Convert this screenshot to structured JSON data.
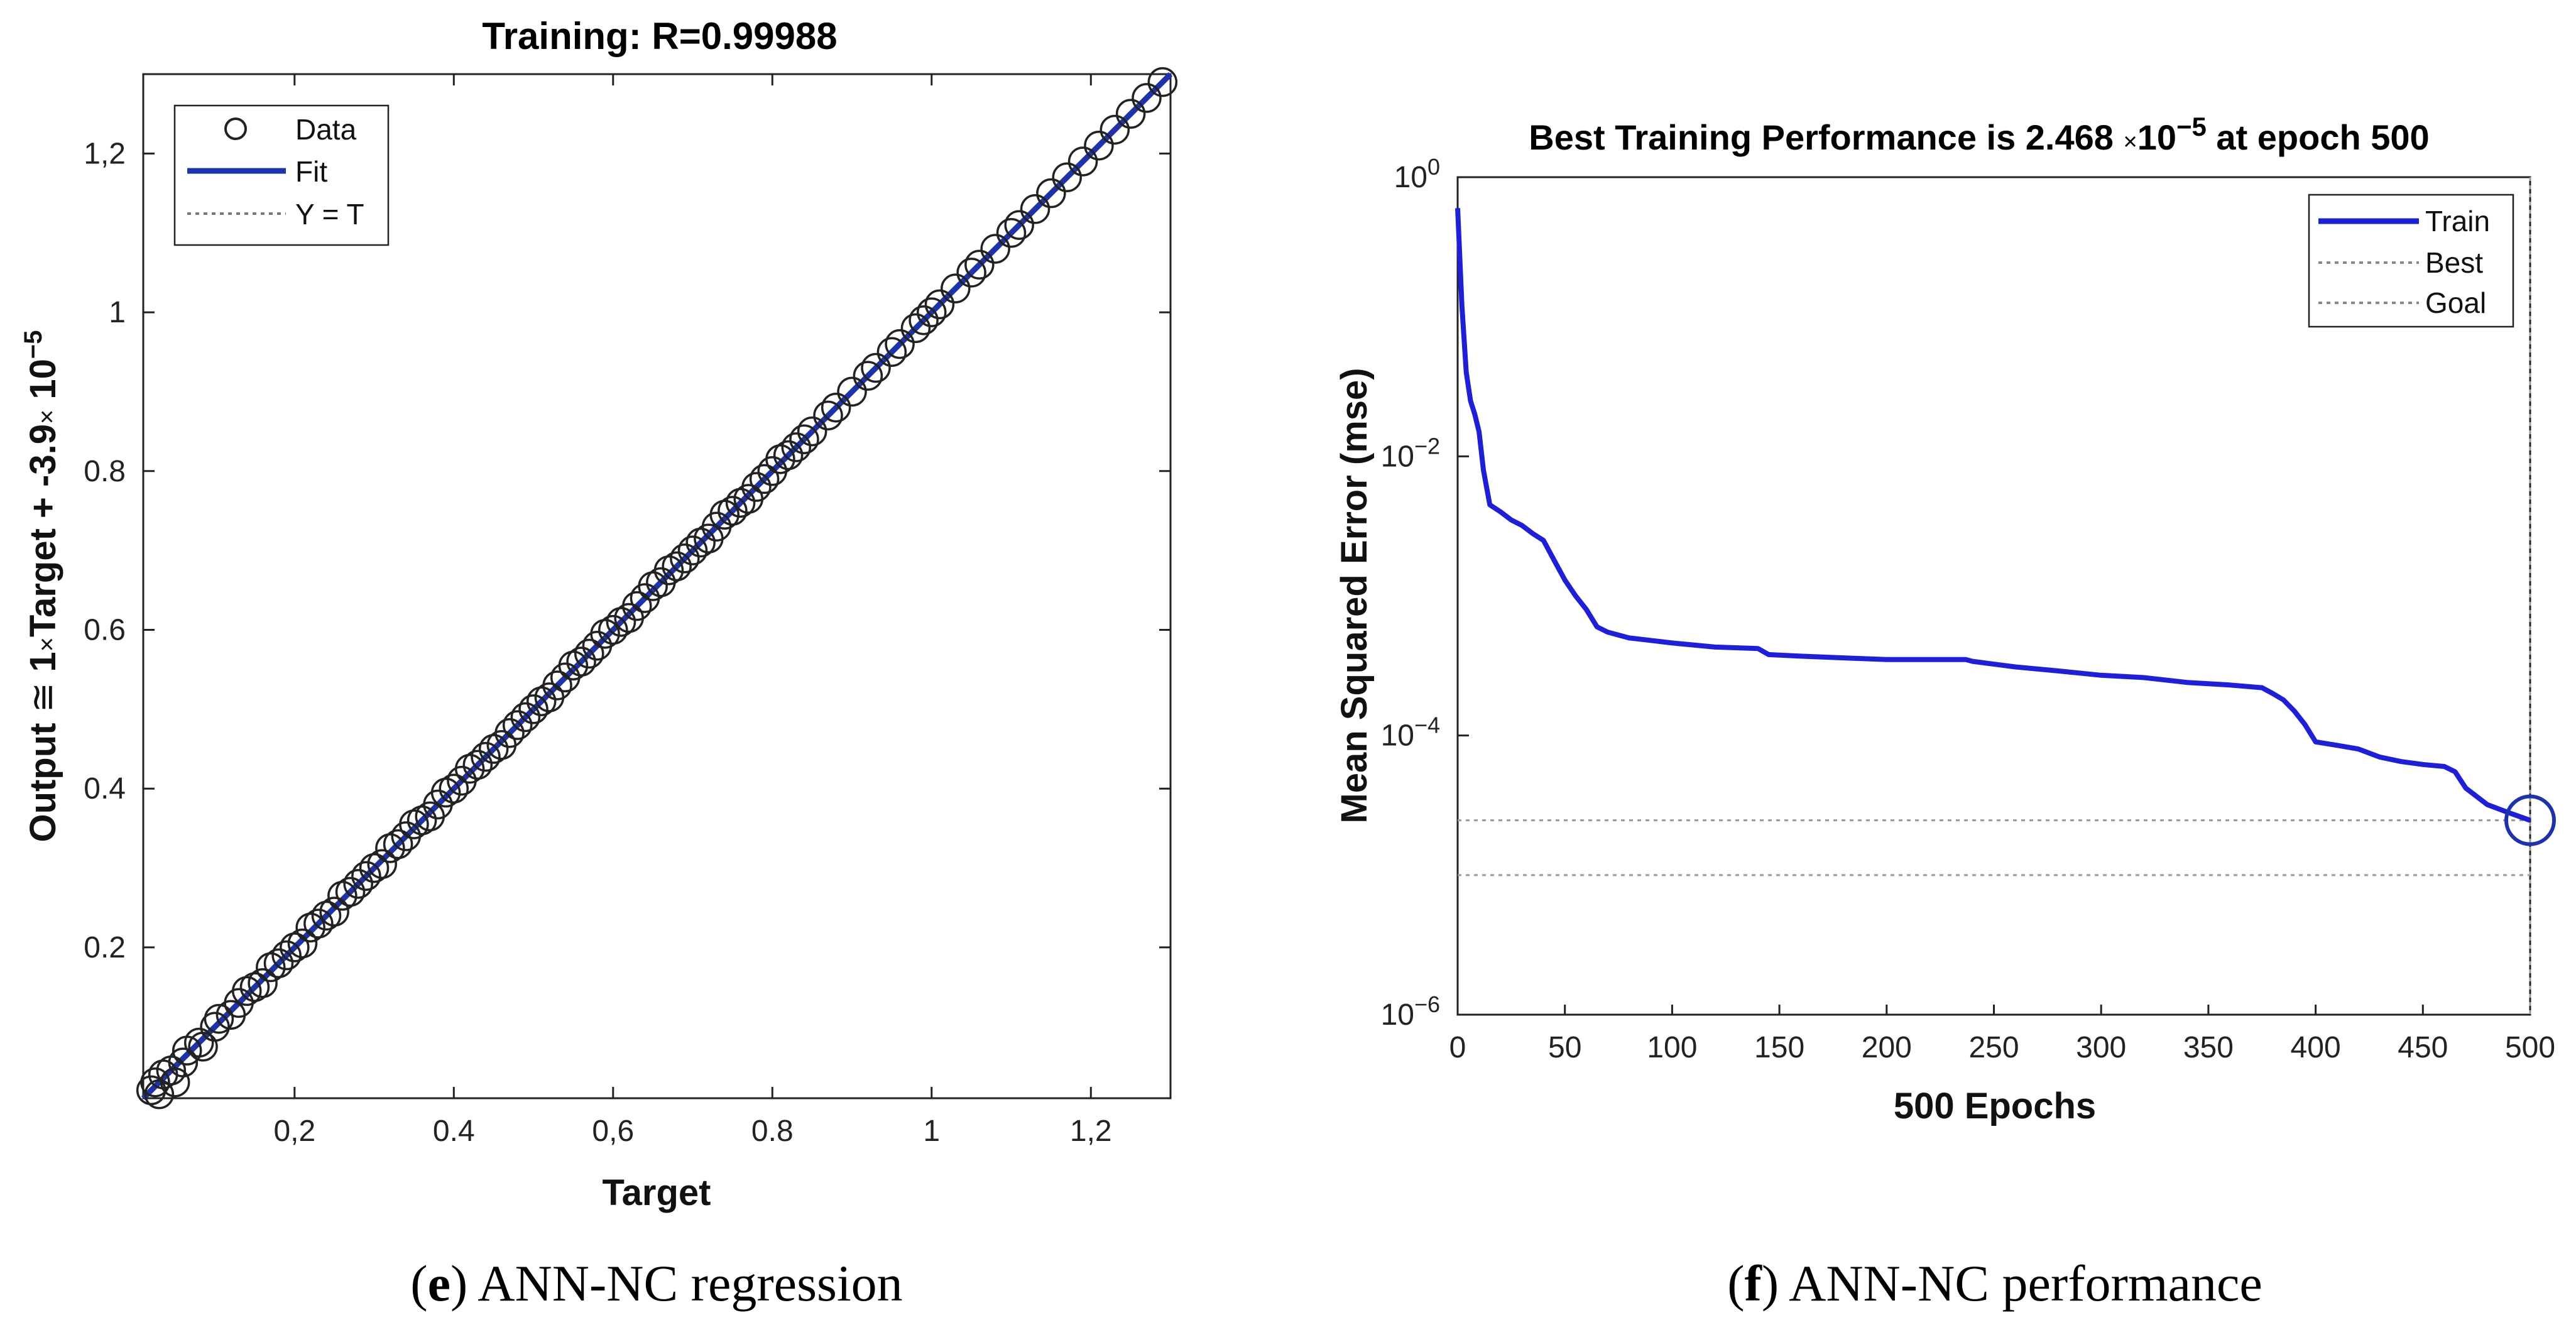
{
  "chart_data": [
    {
      "id": "e",
      "type": "scatter",
      "title": "Training: R=0.99988",
      "xlabel": "Target",
      "ylabel_parts": [
        "Output ",
        "≅",
        " 1",
        "×",
        "Target + -3.9",
        "×",
        " 10",
        "−5"
      ],
      "xlim": [
        0.01,
        1.3
      ],
      "ylim": [
        0.01,
        1.3
      ],
      "x_ticks": [
        0.2,
        0.4,
        0.6,
        0.8,
        1,
        1.2
      ],
      "x_tick_labels": [
        "0,2",
        "0.4",
        "0,6",
        "0.8",
        "1",
        "1,2"
      ],
      "y_ticks": [
        0.2,
        0.4,
        0.6,
        0.8,
        1,
        1.2
      ],
      "y_tick_labels": [
        "0.2",
        "0.4",
        "0.6",
        "0.8",
        "1",
        "1,2"
      ],
      "legend": [
        {
          "label": "Data",
          "style": "circle"
        },
        {
          "label": "Fit",
          "style": "line"
        },
        {
          "label": "Y = T",
          "style": "dotted"
        }
      ],
      "fit": {
        "slope": 1,
        "intercept": -3.9e-05
      },
      "points": [
        [
          0.02,
          0.02
        ],
        [
          0.025,
          0.03
        ],
        [
          0.03,
          0.015
        ],
        [
          0.035,
          0.04
        ],
        [
          0.045,
          0.045
        ],
        [
          0.05,
          0.03
        ],
        [
          0.06,
          0.055
        ],
        [
          0.065,
          0.07
        ],
        [
          0.08,
          0.08
        ],
        [
          0.085,
          0.075
        ],
        [
          0.1,
          0.1
        ],
        [
          0.105,
          0.11
        ],
        [
          0.12,
          0.115
        ],
        [
          0.13,
          0.13
        ],
        [
          0.14,
          0.145
        ],
        [
          0.15,
          0.15
        ],
        [
          0.16,
          0.155
        ],
        [
          0.17,
          0.175
        ],
        [
          0.18,
          0.18
        ],
        [
          0.19,
          0.19
        ],
        [
          0.2,
          0.2
        ],
        [
          0.21,
          0.205
        ],
        [
          0.22,
          0.225
        ],
        [
          0.23,
          0.23
        ],
        [
          0.24,
          0.24
        ],
        [
          0.25,
          0.245
        ],
        [
          0.26,
          0.265
        ],
        [
          0.27,
          0.27
        ],
        [
          0.28,
          0.28
        ],
        [
          0.29,
          0.29
        ],
        [
          0.3,
          0.3
        ],
        [
          0.31,
          0.305
        ],
        [
          0.32,
          0.325
        ],
        [
          0.33,
          0.33
        ],
        [
          0.34,
          0.34
        ],
        [
          0.35,
          0.355
        ],
        [
          0.36,
          0.36
        ],
        [
          0.37,
          0.365
        ],
        [
          0.38,
          0.38
        ],
        [
          0.39,
          0.395
        ],
        [
          0.4,
          0.4
        ],
        [
          0.41,
          0.41
        ],
        [
          0.42,
          0.425
        ],
        [
          0.43,
          0.43
        ],
        [
          0.44,
          0.44
        ],
        [
          0.45,
          0.45
        ],
        [
          0.46,
          0.455
        ],
        [
          0.47,
          0.47
        ],
        [
          0.48,
          0.48
        ],
        [
          0.49,
          0.49
        ],
        [
          0.5,
          0.5
        ],
        [
          0.51,
          0.51
        ],
        [
          0.52,
          0.515
        ],
        [
          0.53,
          0.53
        ],
        [
          0.54,
          0.54
        ],
        [
          0.55,
          0.555
        ],
        [
          0.56,
          0.56
        ],
        [
          0.57,
          0.57
        ],
        [
          0.58,
          0.58
        ],
        [
          0.59,
          0.595
        ],
        [
          0.6,
          0.6
        ],
        [
          0.61,
          0.61
        ],
        [
          0.62,
          0.615
        ],
        [
          0.63,
          0.63
        ],
        [
          0.64,
          0.64
        ],
        [
          0.65,
          0.655
        ],
        [
          0.66,
          0.66
        ],
        [
          0.67,
          0.675
        ],
        [
          0.68,
          0.68
        ],
        [
          0.69,
          0.69
        ],
        [
          0.7,
          0.7
        ],
        [
          0.71,
          0.71
        ],
        [
          0.72,
          0.715
        ],
        [
          0.73,
          0.73
        ],
        [
          0.74,
          0.745
        ],
        [
          0.75,
          0.75
        ],
        [
          0.76,
          0.76
        ],
        [
          0.77,
          0.765
        ],
        [
          0.78,
          0.78
        ],
        [
          0.79,
          0.79
        ],
        [
          0.8,
          0.8
        ],
        [
          0.81,
          0.815
        ],
        [
          0.82,
          0.82
        ],
        [
          0.83,
          0.83
        ],
        [
          0.84,
          0.84
        ],
        [
          0.85,
          0.85
        ],
        [
          0.87,
          0.87
        ],
        [
          0.88,
          0.88
        ],
        [
          0.9,
          0.9
        ],
        [
          0.92,
          0.92
        ],
        [
          0.93,
          0.93
        ],
        [
          0.95,
          0.95
        ],
        [
          0.96,
          0.96
        ],
        [
          0.98,
          0.98
        ],
        [
          0.99,
          0.99
        ],
        [
          1.0,
          1.0
        ],
        [
          1.01,
          1.01
        ],
        [
          1.03,
          1.03
        ],
        [
          1.05,
          1.05
        ],
        [
          1.06,
          1.06
        ],
        [
          1.08,
          1.08
        ],
        [
          1.1,
          1.1
        ],
        [
          1.11,
          1.11
        ],
        [
          1.13,
          1.13
        ],
        [
          1.15,
          1.15
        ],
        [
          1.17,
          1.17
        ],
        [
          1.19,
          1.19
        ],
        [
          1.21,
          1.21
        ],
        [
          1.23,
          1.23
        ],
        [
          1.25,
          1.25
        ],
        [
          1.27,
          1.27
        ],
        [
          1.29,
          1.29
        ]
      ],
      "caption_letter": "e",
      "caption_text": " ANN-NC regression"
    },
    {
      "id": "f",
      "type": "line",
      "title_parts": [
        "Best Training Performance is 2.468 ",
        "×",
        "10",
        "−5",
        " at epoch 500"
      ],
      "xlabel": "500 Epochs",
      "ylabel": "Mean Squared Error  (mse)",
      "xlim": [
        0,
        500
      ],
      "ylim_log10": [
        -6,
        0
      ],
      "x_ticks": [
        0,
        50,
        100,
        150,
        200,
        250,
        300,
        350,
        400,
        450,
        500
      ],
      "x_tick_labels": [
        "0",
        "50",
        "100",
        "150",
        "200",
        "250",
        "300",
        "350",
        "400",
        "450",
        "500"
      ],
      "y_tick_exponents": [
        0,
        -2,
        -4,
        -6
      ],
      "y_tick_exponent_labels": [
        "0",
        "−2",
        "−4",
        "−6"
      ],
      "y_tick_base": "10",
      "legend": [
        {
          "label": "Train",
          "style": "line"
        },
        {
          "label": "Best",
          "style": "dotted"
        },
        {
          "label": "Goal",
          "style": "dotted"
        }
      ],
      "best_mse": 2.468e-05,
      "goal_mse": 1e-05,
      "best_epoch": 500,
      "series": [
        {
          "name": "Train",
          "x": [
            0,
            2,
            4,
            6,
            8,
            10,
            12,
            15,
            20,
            25,
            30,
            35,
            40,
            45,
            50,
            55,
            60,
            65,
            70,
            80,
            90,
            100,
            120,
            140,
            145,
            160,
            180,
            200,
            220,
            237,
            240,
            260,
            280,
            300,
            320,
            340,
            360,
            375,
            380,
            385,
            390,
            395,
            400,
            410,
            420,
            430,
            440,
            450,
            460,
            465,
            470,
            480,
            490,
            500
          ],
          "y": [
            0.6,
            0.12,
            0.04,
            0.025,
            0.02,
            0.015,
            0.008,
            0.0045,
            0.004,
            0.0035,
            0.0032,
            0.0028,
            0.0025,
            0.0018,
            0.0013,
            0.001,
            0.0008,
            0.0006,
            0.00055,
            0.0005,
            0.00048,
            0.00046,
            0.00043,
            0.00042,
            0.00038,
            0.00037,
            0.00036,
            0.00035,
            0.00035,
            0.00035,
            0.00034,
            0.00031,
            0.00029,
            0.00027,
            0.00026,
            0.00024,
            0.00023,
            0.00022,
            0.0002,
            0.00018,
            0.00015,
            0.00012,
            9e-05,
            8.5e-05,
            8e-05,
            7e-05,
            6.5e-05,
            6.2e-05,
            6e-05,
            5.5e-05,
            4.2e-05,
            3.2e-05,
            2.8e-05,
            2.468e-05
          ]
        }
      ],
      "caption_letter": "f",
      "caption_text": " ANN-NC performance"
    }
  ],
  "colors": {
    "line": "#1f1fd6",
    "dark_blue": "#1f33a8",
    "axis": "#222222",
    "marker": "#222222"
  }
}
